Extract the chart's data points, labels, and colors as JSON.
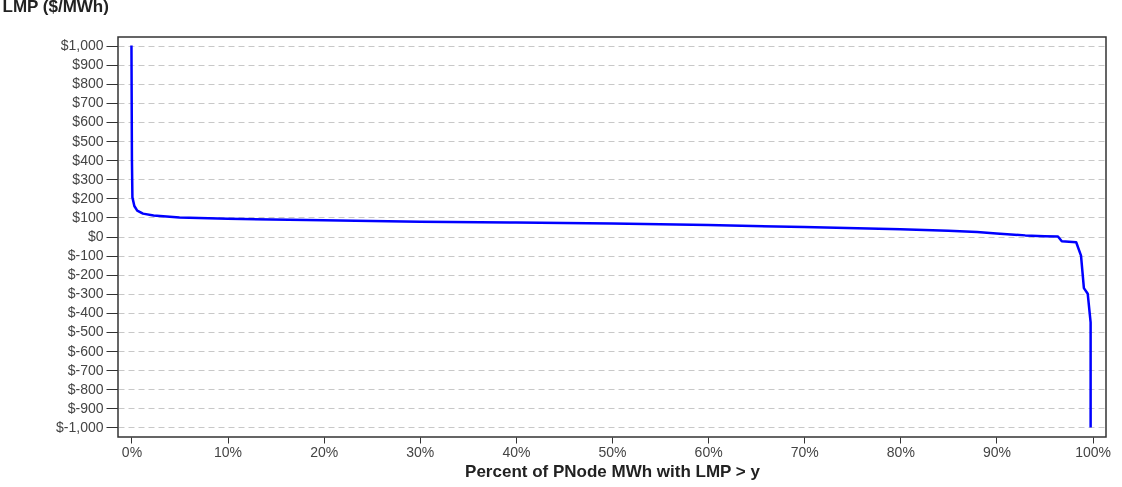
{
  "chart_data": {
    "type": "line",
    "ylabel": "LMP ($/MWh)",
    "xlabel": "Percent of PNode MWh with LMP > y",
    "series": [
      {
        "color": "#0000ff",
        "x": [
          0,
          0.05,
          0.1,
          0.3,
          0.6,
          1.2,
          2.3,
          5,
          10,
          20,
          30,
          40,
          50,
          60,
          70,
          80,
          85,
          88,
          90,
          93,
          95,
          96.4,
          96.8,
          98.3,
          98.8,
          99.1,
          99.5,
          99.8,
          99.8
        ],
        "values": [
          1000,
          400,
          205,
          160,
          136,
          120,
          110,
          100,
          93,
          85,
          78,
          73,
          68,
          60,
          50,
          38,
          30,
          24,
          16,
          6,
          2,
          0,
          -25,
          -30,
          -100,
          -270,
          -300,
          -450,
          -1000
        ]
      }
    ],
    "xlim": [
      -1.4,
      101.4
    ],
    "ylim": [
      -1050,
      1045
    ],
    "xticks": [
      {
        "value": 0,
        "label": "0%"
      },
      {
        "value": 10,
        "label": "10%"
      },
      {
        "value": 20,
        "label": "20%"
      },
      {
        "value": 30,
        "label": "30%"
      },
      {
        "value": 40,
        "label": "40%"
      },
      {
        "value": 50,
        "label": "50%"
      },
      {
        "value": 60,
        "label": "60%"
      },
      {
        "value": 70,
        "label": "70%"
      },
      {
        "value": 80,
        "label": "80%"
      },
      {
        "value": 90,
        "label": "90%"
      },
      {
        "value": 100,
        "label": "100%"
      }
    ],
    "yticks": [
      {
        "value": 1000,
        "label": "$1,000"
      },
      {
        "value": 900,
        "label": "$900"
      },
      {
        "value": 800,
        "label": "$800"
      },
      {
        "value": 700,
        "label": "$700"
      },
      {
        "value": 600,
        "label": "$600"
      },
      {
        "value": 500,
        "label": "$500"
      },
      {
        "value": 400,
        "label": "$400"
      },
      {
        "value": 300,
        "label": "$300"
      },
      {
        "value": 200,
        "label": "$200"
      },
      {
        "value": 100,
        "label": "$100"
      },
      {
        "value": 0,
        "label": "$0"
      },
      {
        "value": -100,
        "label": "$-100"
      },
      {
        "value": -200,
        "label": "$-200"
      },
      {
        "value": -300,
        "label": "$-300"
      },
      {
        "value": -400,
        "label": "$-400"
      },
      {
        "value": -500,
        "label": "$-500"
      },
      {
        "value": -600,
        "label": "$-600"
      },
      {
        "value": -700,
        "label": "$-700"
      },
      {
        "value": -800,
        "label": "$-800"
      },
      {
        "value": -900,
        "label": "$-900"
      },
      {
        "value": -1000,
        "label": "$-1,000"
      }
    ],
    "grid": "y"
  }
}
